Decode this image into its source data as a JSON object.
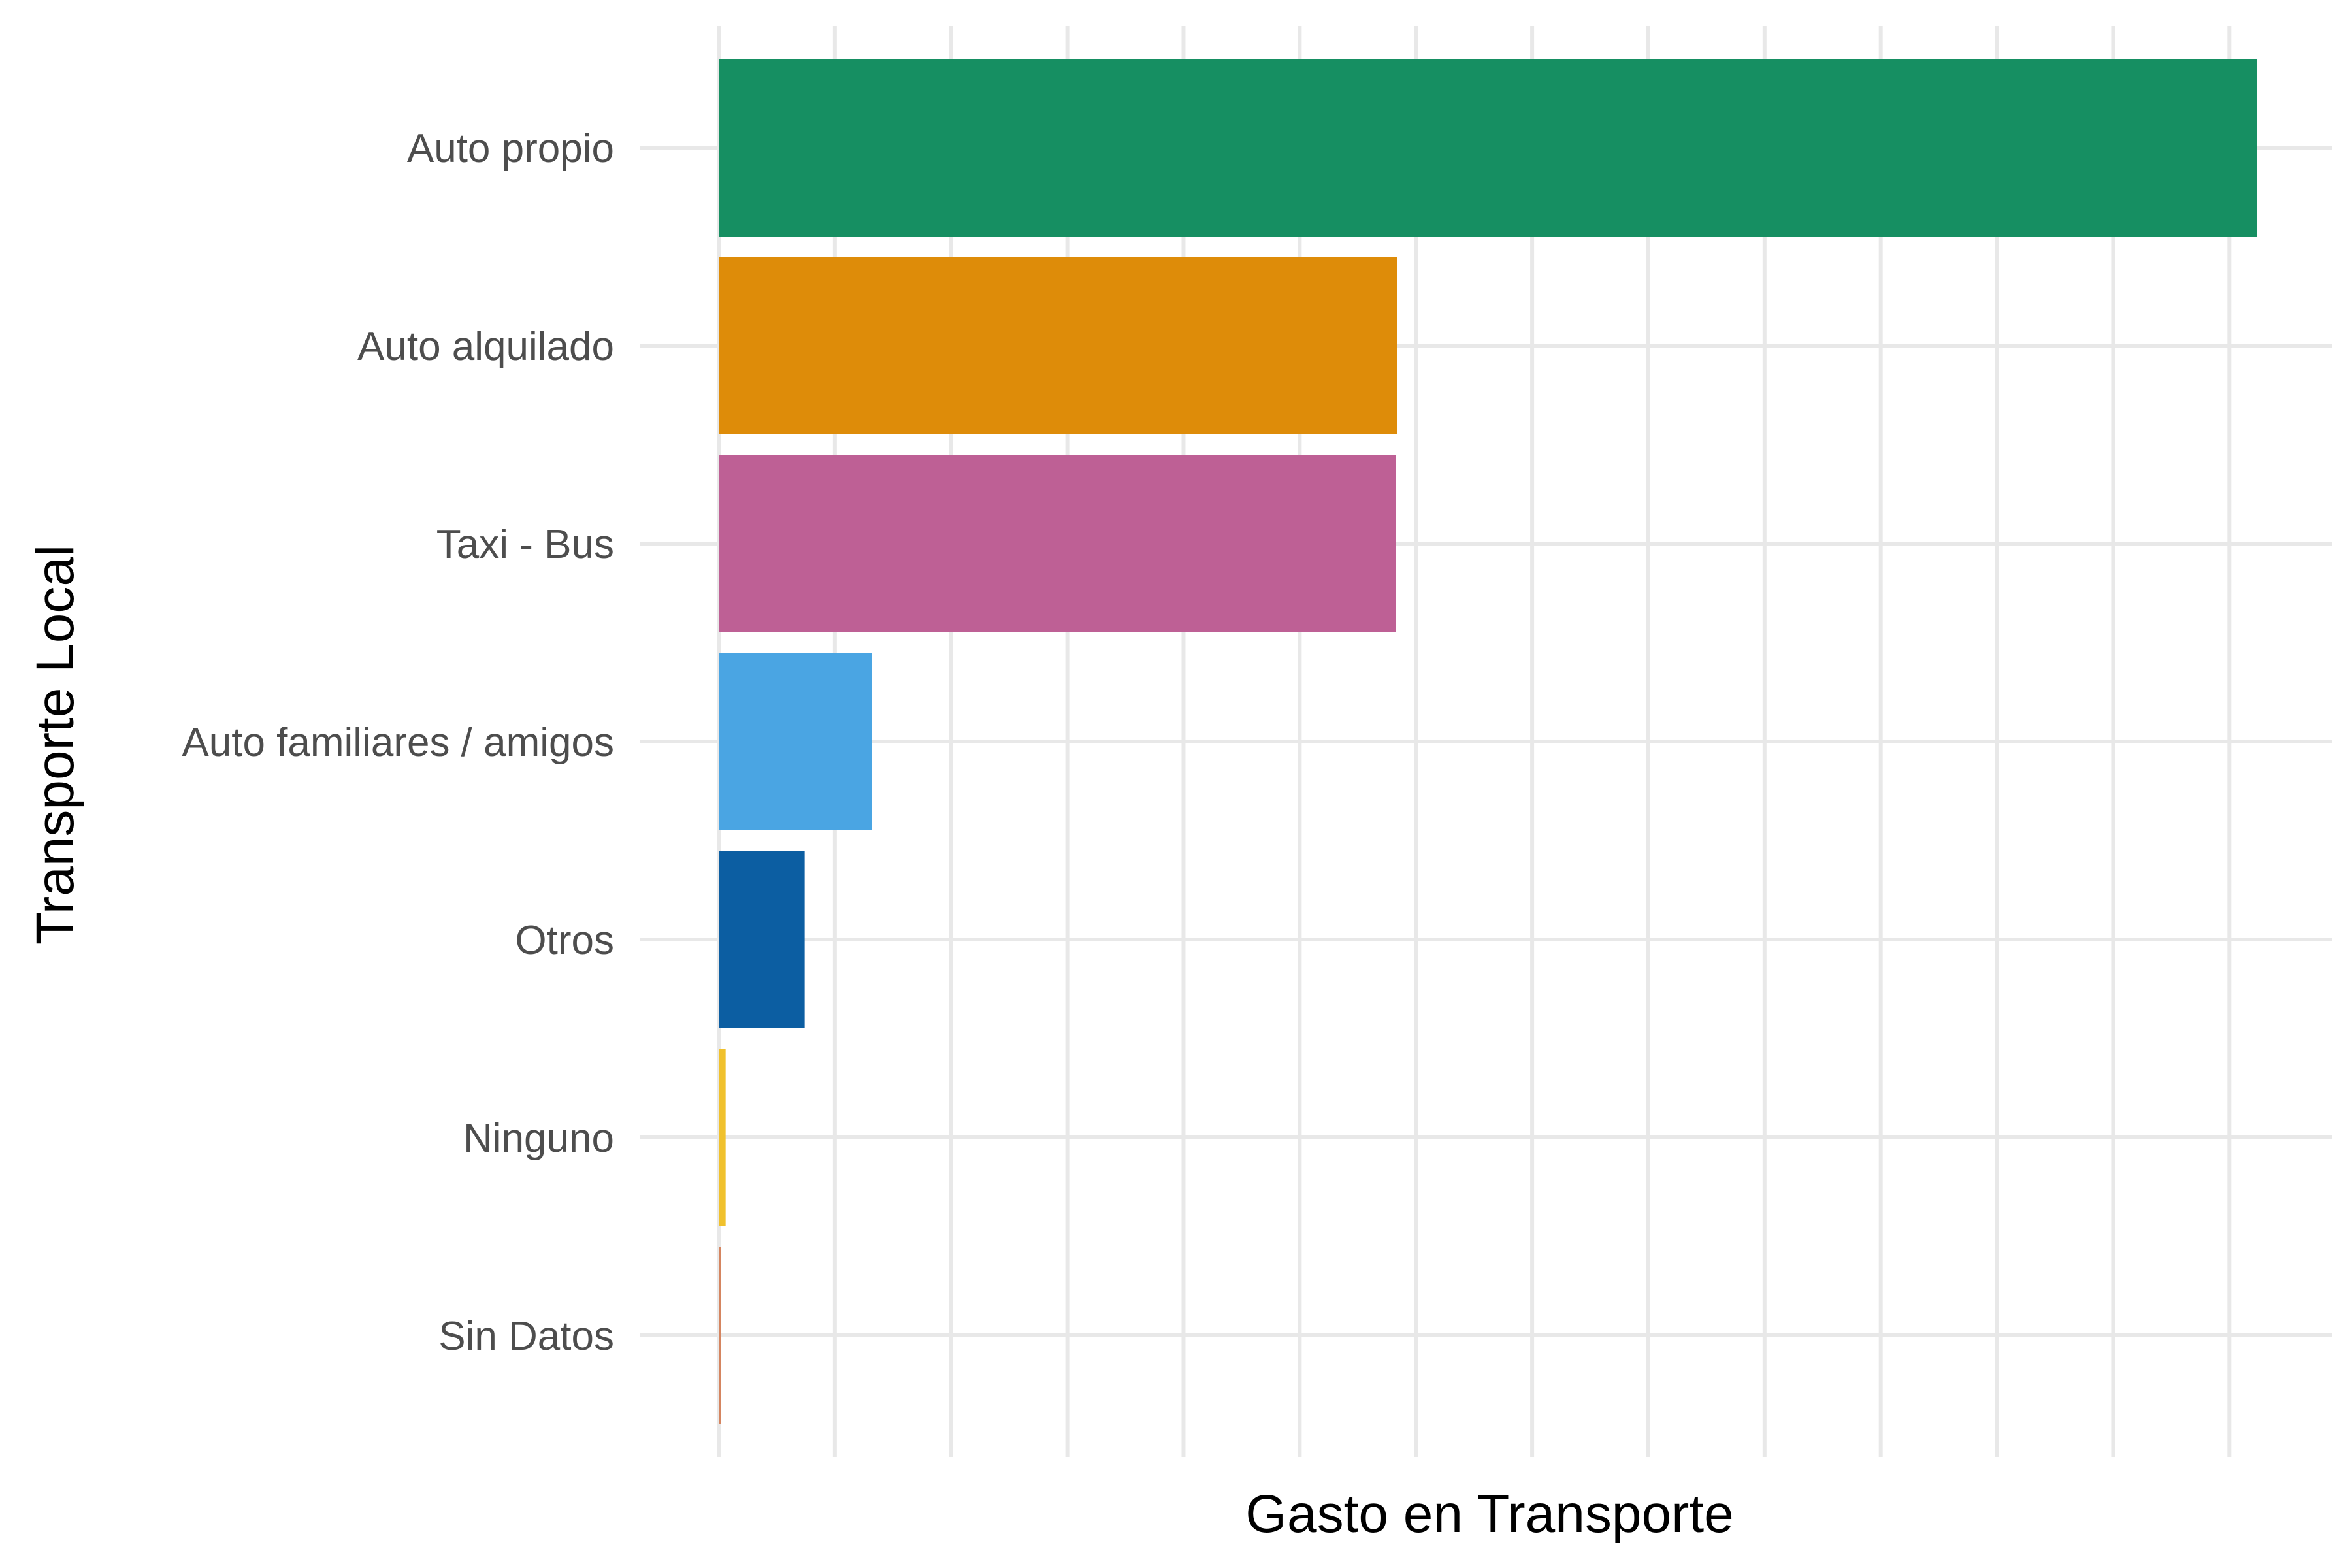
{
  "chart_data": {
    "type": "bar",
    "orientation": "horizontal",
    "title": "",
    "xlabel": "Gasto en Transporte",
    "ylabel": "Transporte Local",
    "categories": [
      "Auto propio",
      "Auto alquilado",
      "Taxi - Bus",
      "Auto familiares / amigos",
      "Otros",
      "Ninguno",
      "Sin Datos"
    ],
    "values": [
      6.62,
      2.92,
      2.915,
      0.66,
      0.37,
      0.03,
      0.01
    ],
    "colors": [
      "#168f62",
      "#de8c09",
      "#be6095",
      "#4aa5e3",
      "#0c5ea2",
      "#f0c12d",
      "#d58560"
    ],
    "xlim": [
      0,
      7
    ],
    "x_tick_labels_shown": false,
    "grid": true,
    "legend": "none"
  }
}
